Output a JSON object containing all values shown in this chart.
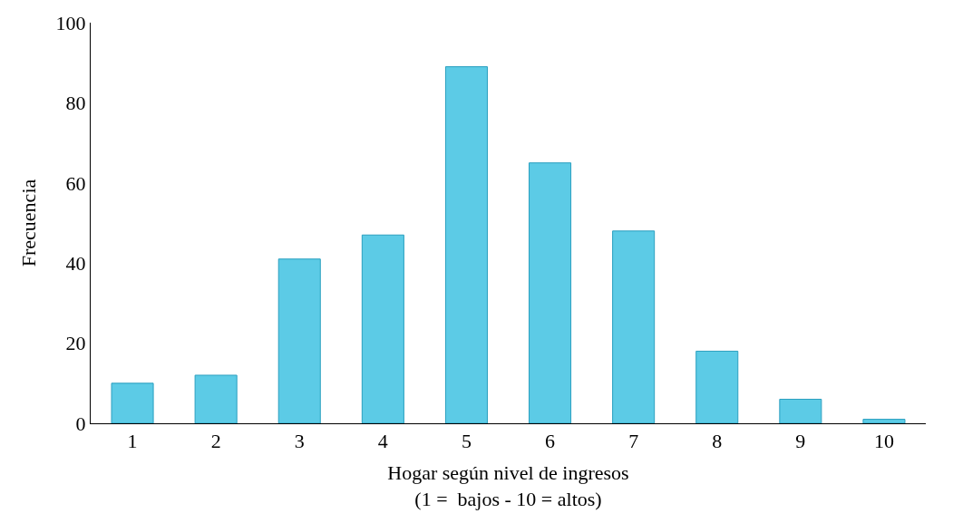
{
  "chart_data": {
    "type": "bar",
    "xlabel": "Hogar según nivel de ingresos\n(1 =  bajos - 10 = altos)",
    "ylabel": "Frecuencia",
    "categories": [
      "1",
      "2",
      "3",
      "4",
      "5",
      "6",
      "7",
      "8",
      "9",
      "10"
    ],
    "series": [
      {
        "color": "#5ccbe6",
        "values": [
          10,
          12,
          41,
          47,
          89,
          65,
          48,
          18,
          6,
          1
        ]
      }
    ],
    "ylim": [
      0,
      100
    ],
    "yticks": [
      0,
      20,
      40,
      60,
      80,
      100
    ],
    "legend": false
  }
}
